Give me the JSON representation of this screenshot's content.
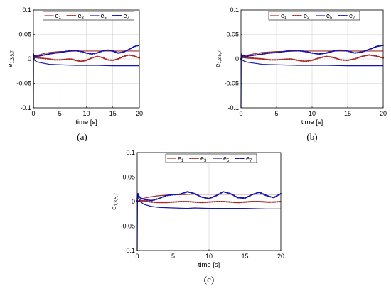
{
  "chart_data": [
    {
      "type": "line",
      "caption": "(a)",
      "xlabel": "time [s]",
      "ylabel": "e1,3,5,7",
      "xlim": [
        0,
        20
      ],
      "ylim": [
        -0.1,
        0.1
      ],
      "xticks": [
        "0",
        "5",
        "10",
        "15",
        "20"
      ],
      "yticks": [
        "-0.1",
        "-0.05",
        "0",
        "0.05",
        "0.1"
      ],
      "grid": true,
      "legend": "top-center",
      "series": [
        {
          "name": "e1",
          "color": "#a52a2a",
          "style": "solid",
          "x": [
            0,
            0.2,
            0.5,
            1,
            2,
            3,
            4,
            5,
            6,
            8,
            10,
            12,
            14,
            16,
            18,
            20
          ],
          "y": [
            0,
            0.004,
            0.006,
            0.008,
            0.011,
            0.013,
            0.014,
            0.015,
            0.015,
            0.016,
            0.016,
            0.016,
            0.016,
            0.016,
            0.016,
            0.016
          ]
        },
        {
          "name": "e3",
          "color": "#a52a2a",
          "style": "dotted",
          "x": [
            0,
            0.3,
            1,
            2,
            3,
            4,
            5,
            6,
            7,
            8,
            9,
            10,
            11,
            12,
            13,
            14,
            15,
            16,
            17,
            18,
            19,
            20
          ],
          "y": [
            0,
            0.003,
            0.002,
            0.001,
            0.0,
            -0.002,
            -0.002,
            -0.001,
            0.0,
            -0.003,
            -0.005,
            -0.003,
            0.002,
            0.005,
            0.003,
            -0.002,
            -0.003,
            0.0,
            0.005,
            0.008,
            0.006,
            0.002
          ]
        },
        {
          "name": "e5",
          "color": "#1515b0",
          "style": "solid",
          "x": [
            0,
            0.03,
            0.06,
            0.1,
            0.15,
            0.25,
            0.5,
            1,
            2,
            3,
            5,
            8,
            10,
            12,
            15,
            18,
            20
          ],
          "y": [
            -0.1,
            0.005,
            0.01,
            0.0,
            -0.002,
            -0.003,
            -0.005,
            -0.007,
            -0.009,
            -0.011,
            -0.012,
            -0.013,
            -0.013,
            -0.013,
            -0.014,
            -0.014,
            -0.014
          ]
        },
        {
          "name": "e7",
          "color": "#1515b0",
          "style": "dotted",
          "x": [
            0,
            0.3,
            0.6,
            1,
            2,
            3,
            4,
            5,
            6,
            7,
            8,
            9,
            10,
            11,
            12,
            13,
            14,
            15,
            16,
            17,
            18,
            19,
            20
          ],
          "y": [
            0,
            0.008,
            0.004,
            0.006,
            0.008,
            0.01,
            0.012,
            0.013,
            0.015,
            0.017,
            0.017,
            0.015,
            0.012,
            0.01,
            0.012,
            0.016,
            0.018,
            0.016,
            0.012,
            0.014,
            0.019,
            0.025,
            0.028
          ]
        }
      ]
    },
    {
      "type": "line",
      "caption": "(b)",
      "xlabel": "time [s]",
      "ylabel": "e1,3,5,7",
      "xlim": [
        0,
        20
      ],
      "ylim": [
        -0.1,
        0.1
      ],
      "xticks": [
        "0",
        "5",
        "10",
        "15",
        "20"
      ],
      "yticks": [
        "-0.1",
        "-0.05",
        "0",
        "0.05",
        "0.1"
      ],
      "grid": true,
      "legend": "top-center",
      "series": [
        {
          "name": "e1",
          "color": "#a52a2a",
          "style": "solid",
          "x": [
            0,
            0.2,
            0.5,
            1,
            2,
            3,
            4,
            5,
            6,
            8,
            10,
            12,
            14,
            16,
            18,
            20
          ],
          "y": [
            0,
            0.004,
            0.006,
            0.008,
            0.011,
            0.013,
            0.014,
            0.015,
            0.015,
            0.016,
            0.016,
            0.016,
            0.016,
            0.016,
            0.016,
            0.016
          ]
        },
        {
          "name": "e3",
          "color": "#a52a2a",
          "style": "dotted",
          "x": [
            0,
            0.3,
            1,
            2,
            3,
            4,
            5,
            6,
            7,
            8,
            9,
            10,
            11,
            12,
            13,
            14,
            15,
            16,
            17,
            18,
            19,
            20
          ],
          "y": [
            0,
            0.003,
            0.002,
            0.001,
            0.0,
            -0.002,
            -0.002,
            -0.001,
            0.0,
            -0.003,
            -0.005,
            -0.003,
            0.002,
            0.005,
            0.003,
            -0.002,
            -0.003,
            0.0,
            0.005,
            0.008,
            0.006,
            0.002
          ]
        },
        {
          "name": "e5",
          "color": "#1515b0",
          "style": "solid",
          "x": [
            0,
            0.03,
            0.06,
            0.1,
            0.15,
            0.25,
            0.5,
            1,
            2,
            3,
            5,
            8,
            10,
            12,
            15,
            18,
            20
          ],
          "y": [
            -0.1,
            0.005,
            0.01,
            0.0,
            -0.002,
            -0.003,
            -0.005,
            -0.007,
            -0.009,
            -0.011,
            -0.012,
            -0.013,
            -0.013,
            -0.013,
            -0.014,
            -0.014,
            -0.014
          ]
        },
        {
          "name": "e7",
          "color": "#1515b0",
          "style": "dotted",
          "x": [
            0,
            0.3,
            0.6,
            1,
            2,
            3,
            4,
            5,
            6,
            7,
            8,
            9,
            10,
            11,
            12,
            13,
            14,
            15,
            16,
            17,
            18,
            19,
            20
          ],
          "y": [
            0,
            0.008,
            0.004,
            0.006,
            0.008,
            0.01,
            0.012,
            0.013,
            0.015,
            0.017,
            0.017,
            0.015,
            0.012,
            0.01,
            0.012,
            0.016,
            0.018,
            0.016,
            0.012,
            0.014,
            0.019,
            0.025,
            0.028
          ]
        }
      ]
    },
    {
      "type": "line",
      "caption": "(c)",
      "xlabel": "time [s]",
      "ylabel": "e1,3,5,7",
      "xlim": [
        0,
        20
      ],
      "ylim": [
        -0.1,
        0.1
      ],
      "xticks": [
        "0",
        "5",
        "10",
        "15",
        "20"
      ],
      "yticks": [
        "-0.1",
        "-0.05",
        "0",
        "0.05",
        "0.1"
      ],
      "grid": true,
      "legend": "top-center",
      "series": [
        {
          "name": "e1",
          "color": "#a52a2a",
          "style": "solid",
          "x": [
            0,
            0.3,
            0.6,
            1,
            2,
            3,
            4,
            5,
            6,
            8,
            10,
            12,
            14,
            16,
            18,
            20
          ],
          "y": [
            0,
            0.003,
            0.005,
            0.007,
            0.01,
            0.012,
            0.013,
            0.014,
            0.014,
            0.015,
            0.015,
            0.015,
            0.015,
            0.015,
            0.015,
            0.015
          ]
        },
        {
          "name": "e3",
          "color": "#a52a2a",
          "style": "dotted",
          "x": [
            0,
            0.5,
            1,
            2,
            3,
            4,
            5,
            6,
            7,
            8,
            9,
            10,
            11,
            12,
            13,
            14,
            15,
            16,
            17,
            18,
            19,
            20
          ],
          "y": [
            0,
            0.002,
            0.001,
            -0.001,
            -0.002,
            -0.002,
            -0.001,
            0.0,
            0.0,
            -0.001,
            -0.002,
            -0.001,
            0.0,
            0.0,
            -0.001,
            -0.002,
            -0.001,
            0.0,
            0.0,
            -0.001,
            -0.001,
            0.0
          ]
        },
        {
          "name": "e5",
          "color": "#1515b0",
          "style": "solid",
          "x": [
            0,
            0.04,
            0.08,
            0.15,
            0.25,
            0.4,
            0.7,
            1,
            2,
            3,
            5,
            7,
            8,
            10,
            12,
            15,
            18,
            20
          ],
          "y": [
            -0.1,
            0.01,
            0.016,
            0.01,
            0.004,
            0.0,
            -0.003,
            -0.006,
            -0.01,
            -0.012,
            -0.013,
            -0.014,
            -0.013,
            -0.014,
            -0.014,
            -0.014,
            -0.015,
            -0.015
          ]
        },
        {
          "name": "e7",
          "color": "#1515b0",
          "style": "dotted",
          "x": [
            0,
            0.05,
            0.1,
            0.2,
            0.4,
            0.7,
            1,
            2,
            3,
            4,
            5,
            6,
            7,
            8,
            9,
            10,
            11,
            12,
            13,
            14,
            15,
            16,
            17,
            18,
            19,
            20
          ],
          "y": [
            0,
            0.012,
            0.016,
            0.012,
            0.008,
            0.006,
            0.004,
            0.002,
            0.006,
            0.012,
            0.014,
            0.015,
            0.02,
            0.016,
            0.009,
            0.006,
            0.012,
            0.02,
            0.016,
            0.008,
            0.007,
            0.014,
            0.019,
            0.012,
            0.008,
            0.016
          ]
        }
      ]
    }
  ]
}
